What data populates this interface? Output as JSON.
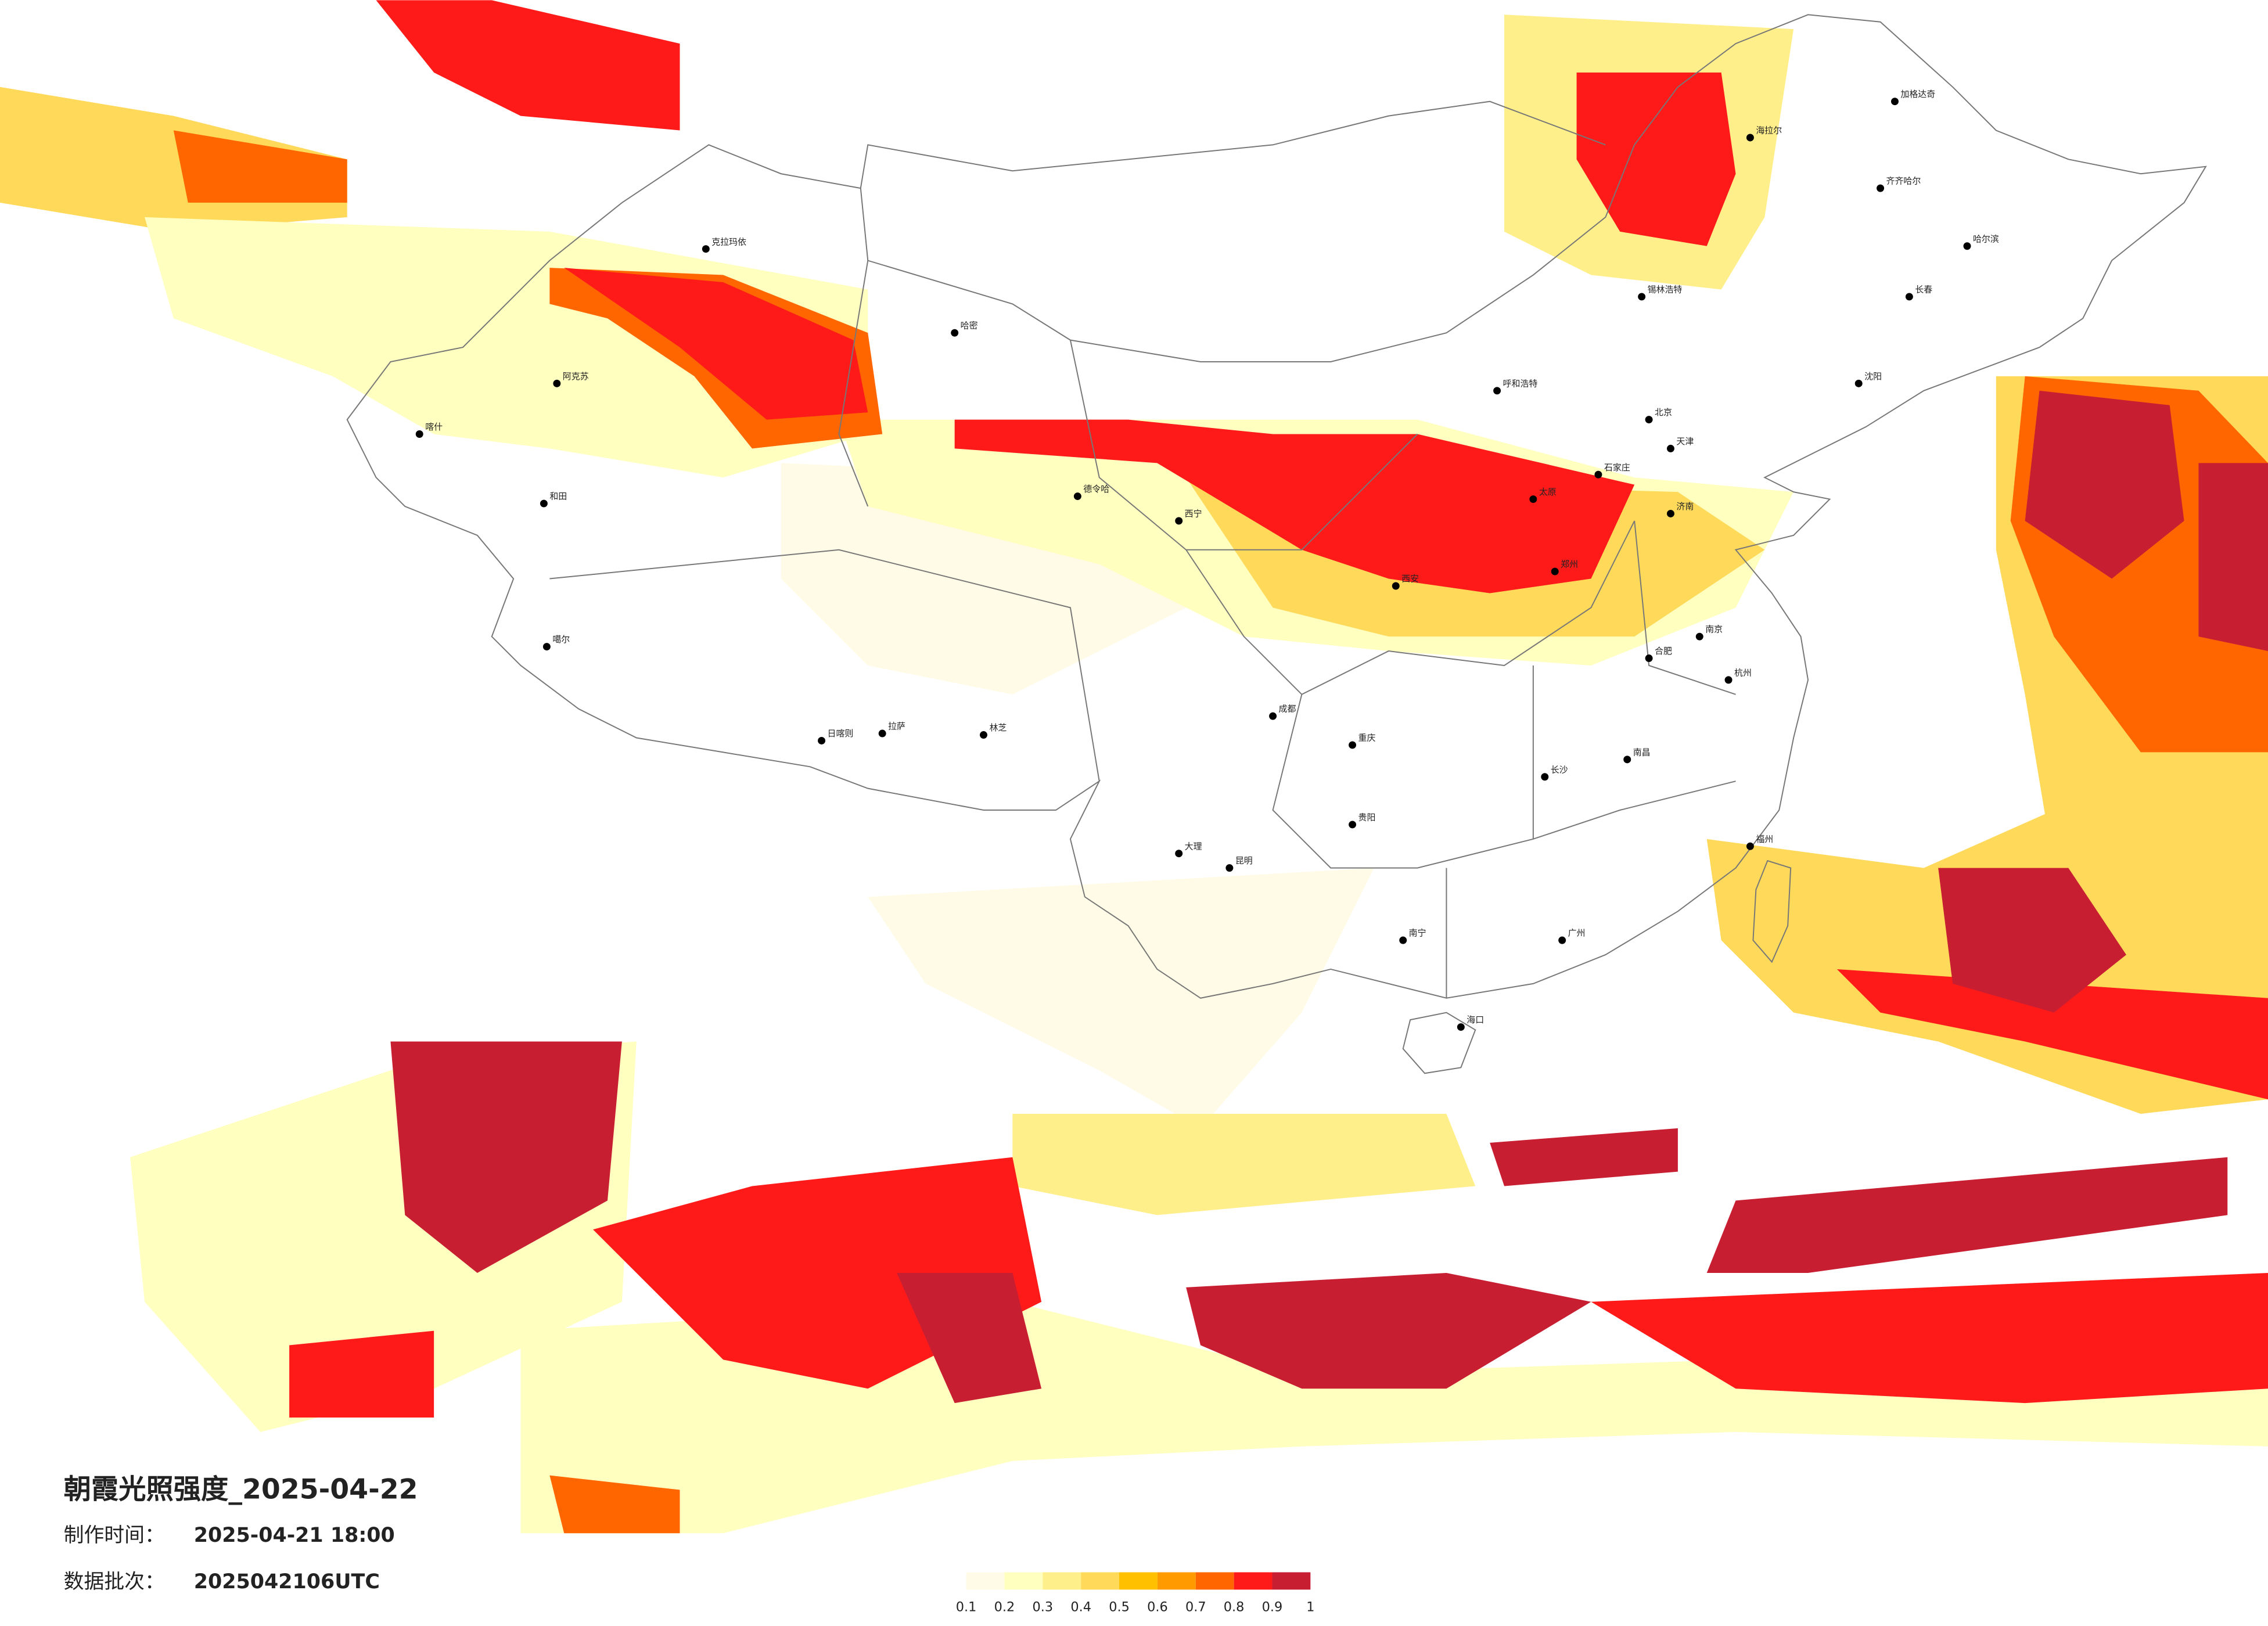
{
  "header": {
    "title": "朝霞光照强度_2025-04-22",
    "made_label": "制作时间：",
    "made_value": "2025-04-21 18:00",
    "batch_label": "数据批次：",
    "batch_value": "2025042106UTC"
  },
  "legend": {
    "colors": [
      "#fffbe6",
      "#ffffbf",
      "#ffef8a",
      "#ffd95a",
      "#ffc000",
      "#ff9b00",
      "#ff6600",
      "#ff1a1a",
      "#c81e32"
    ],
    "ticks": [
      0.1,
      0.2,
      0.3,
      0.4,
      0.5,
      0.6,
      0.7,
      0.8,
      0.9,
      1
    ]
  },
  "cities": [
    "克拉玛依",
    "哈密",
    "阿克苏",
    "和田",
    "喀什",
    "德令哈",
    "拉萨",
    "日喀则",
    "林芝",
    "噶尔",
    "西宁",
    "呼和浩特",
    "北京",
    "天津",
    "石家庄",
    "太原",
    "济南",
    "郑州",
    "西安",
    "长沙",
    "南昌",
    "杭州",
    "南京",
    "合肥",
    "福州",
    "广州",
    "南宁",
    "昆明",
    "贵阳",
    "成都",
    "重庆",
    "海口",
    "哈尔滨",
    "长春",
    "沈阳",
    "齐齐哈尔",
    "海拉尔",
    "加格达奇",
    "大理",
    "锡林浩特"
  ]
}
